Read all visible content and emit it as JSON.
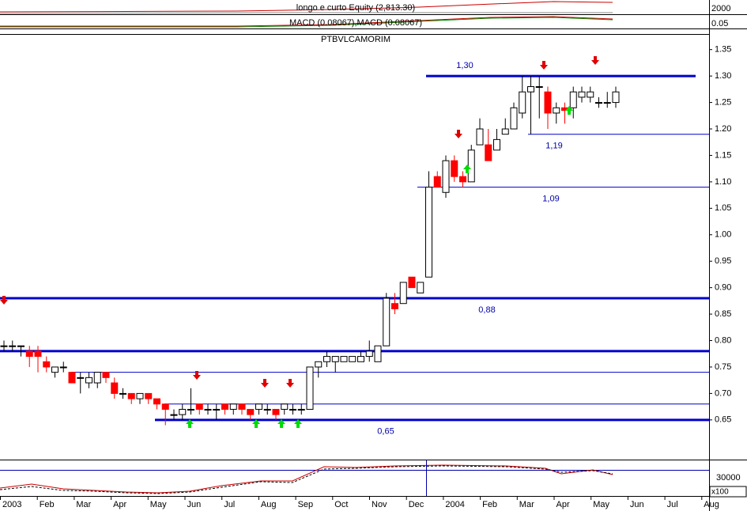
{
  "chart_data": {
    "type": "candlestick",
    "title": "PTBVLCAMORIM",
    "top_panels": [
      {
        "label": "longo e curto Equity (2,813.30)",
        "tick": "2000"
      },
      {
        "label": "MACD (0.08067),MACD (0.08067)",
        "tick": "0.05"
      }
    ],
    "bottom_panel": {
      "tick": "30000",
      "unit": "x100"
    },
    "months": [
      "2003",
      "Feb",
      "Mar",
      "Apr",
      "May",
      "Jun",
      "Jul",
      "Aug",
      "Sep",
      "Oct",
      "Nov",
      "Dec",
      "2004",
      "Feb",
      "Mar",
      "Apr",
      "May",
      "Jun",
      "Jul",
      "Aug"
    ],
    "ylim": [
      0.575,
      1.36
    ],
    "yticks": [
      1.35,
      {
        "value": 1.3,
        "label": "1.30"
      },
      1.25,
      {
        "value": 1.2,
        "label": "1.20"
      },
      1.15,
      {
        "value": 1.1,
        "label": "1.10"
      },
      1.05,
      {
        "value": 1.0,
        "label": "1.00"
      },
      0.95,
      {
        "value": 0.9,
        "label": "0.90"
      },
      0.85,
      {
        "value": 0.8,
        "label": "0.80"
      },
      0.75,
      {
        "value": 0.7,
        "label": "0.70"
      },
      0.65
    ],
    "up_color": "#ffffff",
    "down_color": "#ff0000",
    "levels": [
      {
        "value": 1.3,
        "label": "1,30"
      },
      {
        "value": 1.19,
        "label": "1,19"
      },
      {
        "value": 1.09,
        "label": "1,09"
      },
      {
        "value": 0.88,
        "label": "0,88"
      },
      {
        "value": 0.78
      },
      {
        "value": 0.74
      },
      {
        "value": 0.68
      },
      {
        "value": 0.65,
        "label": "0,65"
      }
    ],
    "candles": [
      [
        0.79,
        0.8,
        0.78,
        0.79
      ],
      [
        0.79,
        0.8,
        0.78,
        0.79
      ],
      [
        0.79,
        0.79,
        0.77,
        0.79
      ],
      [
        0.78,
        0.79,
        0.75,
        0.77
      ],
      [
        0.78,
        0.79,
        0.74,
        0.77
      ],
      [
        0.76,
        0.77,
        0.74,
        0.75
      ],
      [
        0.74,
        0.75,
        0.73,
        0.75
      ],
      [
        0.75,
        0.76,
        0.74,
        0.75
      ],
      [
        0.74,
        0.74,
        0.72,
        0.72
      ],
      [
        0.73,
        0.74,
        0.7,
        0.73
      ],
      [
        0.72,
        0.74,
        0.71,
        0.73
      ],
      [
        0.72,
        0.74,
        0.71,
        0.74
      ],
      [
        0.74,
        0.74,
        0.72,
        0.73
      ],
      [
        0.72,
        0.73,
        0.69,
        0.7
      ],
      [
        0.7,
        0.71,
        0.69,
        0.7
      ],
      [
        0.7,
        0.7,
        0.68,
        0.69
      ],
      [
        0.69,
        0.7,
        0.68,
        0.7
      ],
      [
        0.7,
        0.7,
        0.68,
        0.69
      ],
      [
        0.69,
        0.69,
        0.67,
        0.68
      ],
      [
        0.68,
        0.68,
        0.64,
        0.67
      ],
      [
        0.66,
        0.67,
        0.65,
        0.66
      ],
      [
        0.66,
        0.68,
        0.65,
        0.67
      ],
      [
        0.67,
        0.71,
        0.66,
        0.67
      ],
      [
        0.68,
        0.68,
        0.66,
        0.67
      ],
      [
        0.67,
        0.68,
        0.66,
        0.67
      ],
      [
        0.67,
        0.68,
        0.65,
        0.67
      ],
      [
        0.68,
        0.68,
        0.66,
        0.67
      ],
      [
        0.67,
        0.68,
        0.66,
        0.68
      ],
      [
        0.68,
        0.68,
        0.66,
        0.67
      ],
      [
        0.67,
        0.67,
        0.65,
        0.66
      ],
      [
        0.67,
        0.68,
        0.66,
        0.68
      ],
      [
        0.67,
        0.68,
        0.66,
        0.67
      ],
      [
        0.67,
        0.67,
        0.65,
        0.66
      ],
      [
        0.67,
        0.68,
        0.66,
        0.68
      ],
      [
        0.67,
        0.68,
        0.66,
        0.67
      ],
      [
        0.67,
        0.68,
        0.66,
        0.67
      ],
      [
        0.67,
        0.75,
        0.67,
        0.75
      ],
      [
        0.75,
        0.76,
        0.73,
        0.76
      ],
      [
        0.76,
        0.78,
        0.75,
        0.77
      ],
      [
        0.76,
        0.77,
        0.74,
        0.77
      ],
      [
        0.76,
        0.77,
        0.76,
        0.77
      ],
      [
        0.76,
        0.77,
        0.76,
        0.77
      ],
      [
        0.76,
        0.78,
        0.76,
        0.77
      ],
      [
        0.77,
        0.8,
        0.76,
        0.78
      ],
      [
        0.76,
        0.79,
        0.76,
        0.79
      ],
      [
        0.79,
        0.89,
        0.79,
        0.88
      ],
      [
        0.87,
        0.89,
        0.85,
        0.86
      ],
      [
        0.87,
        0.91,
        0.87,
        0.91
      ],
      [
        0.92,
        0.92,
        0.9,
        0.9
      ],
      [
        0.89,
        0.91,
        0.89,
        0.91
      ],
      [
        0.92,
        1.12,
        0.92,
        1.09
      ],
      [
        1.11,
        1.12,
        1.09,
        1.09
      ],
      [
        1.08,
        1.15,
        1.07,
        1.14
      ],
      [
        1.14,
        1.15,
        1.1,
        1.11
      ],
      [
        1.11,
        1.12,
        1.09,
        1.1
      ],
      [
        1.1,
        1.17,
        1.1,
        1.16
      ],
      [
        1.17,
        1.22,
        1.17,
        1.2
      ],
      [
        1.17,
        1.2,
        1.14,
        1.14
      ],
      [
        1.16,
        1.2,
        1.16,
        1.18
      ],
      [
        1.19,
        1.22,
        1.19,
        1.2
      ],
      [
        1.2,
        1.25,
        1.2,
        1.24
      ],
      [
        1.23,
        1.3,
        1.22,
        1.27
      ],
      [
        1.27,
        1.3,
        1.19,
        1.28
      ],
      [
        1.28,
        1.3,
        1.22,
        1.28
      ],
      [
        1.27,
        1.28,
        1.2,
        1.23
      ],
      [
        1.23,
        1.25,
        1.21,
        1.24
      ],
      [
        1.24,
        1.25,
        1.21,
        1.235
      ],
      [
        1.24,
        1.28,
        1.22,
        1.27
      ],
      [
        1.26,
        1.28,
        1.25,
        1.27
      ],
      [
        1.26,
        1.28,
        1.25,
        1.27
      ],
      [
        1.25,
        1.26,
        1.24,
        1.25
      ],
      [
        1.25,
        1.27,
        1.24,
        1.25
      ],
      [
        1.25,
        1.28,
        1.24,
        1.27
      ]
    ]
  }
}
